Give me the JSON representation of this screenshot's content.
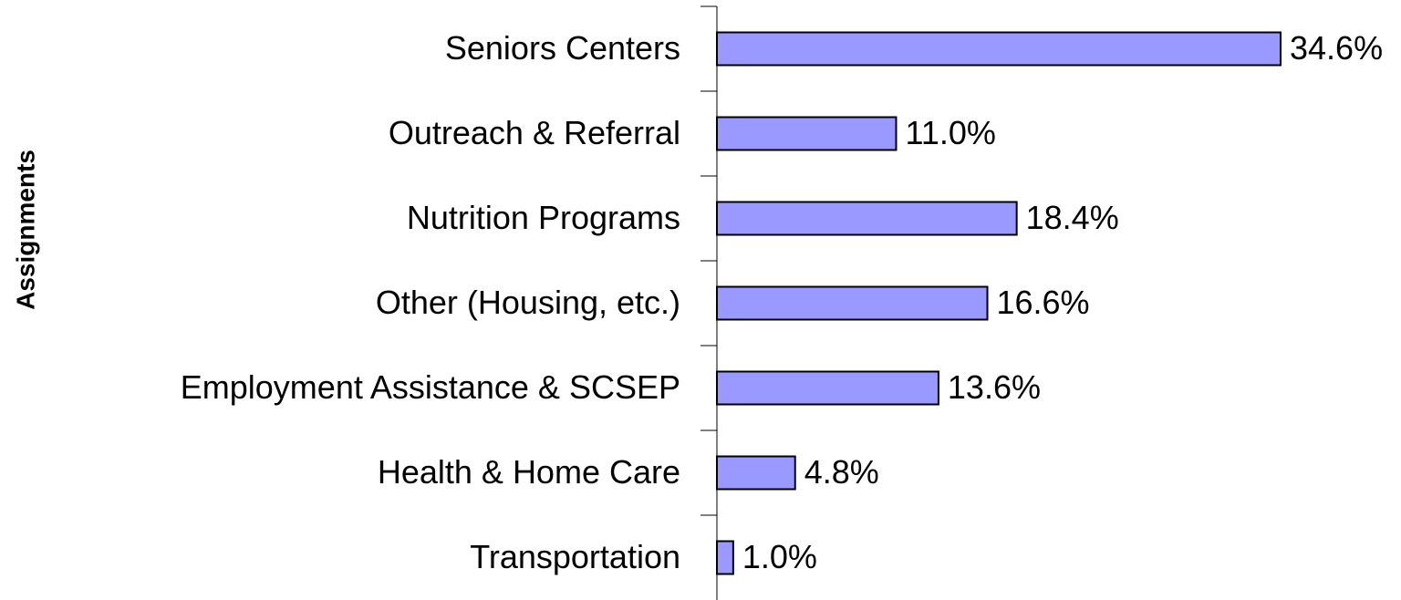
{
  "chart_data": {
    "type": "bar",
    "orientation": "horizontal",
    "y_label": "Assignments",
    "categories": [
      "Seniors Centers",
      "Outreach & Referral",
      "Nutrition Programs",
      "Other (Housing, etc.)",
      "Employment Assistance & SCSEP",
      "Health & Home Care",
      "Transportation"
    ],
    "values": [
      34.6,
      11.0,
      18.4,
      16.6,
      13.6,
      4.8,
      1.0
    ],
    "value_labels": [
      "34.6%",
      "11.0%",
      "18.4%",
      "16.6%",
      "13.6%",
      "4.8%",
      "1.0%"
    ],
    "color": "#9999ff"
  }
}
